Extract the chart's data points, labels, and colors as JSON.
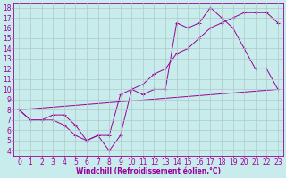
{
  "bg_color": "#c8ecec",
  "line_color": "#990099",
  "grid_color": "#b0c8c8",
  "xlabel": "Windchill (Refroidissement éolien,°C)",
  "xlabel_fontsize": 5.5,
  "tick_fontsize": 5.5,
  "xlim": [
    -0.5,
    23.5
  ],
  "ylim": [
    3.5,
    18.5
  ],
  "xticks": [
    0,
    1,
    2,
    3,
    4,
    5,
    6,
    7,
    8,
    9,
    10,
    11,
    12,
    13,
    14,
    15,
    16,
    17,
    18,
    19,
    20,
    21,
    22,
    23
  ],
  "yticks": [
    4,
    5,
    6,
    7,
    8,
    9,
    10,
    11,
    12,
    13,
    14,
    15,
    16,
    17,
    18
  ],
  "curve1_x": [
    0,
    1,
    2,
    3,
    4,
    5,
    6,
    7,
    8,
    9,
    10,
    11,
    12,
    13,
    14,
    15,
    16,
    17,
    18,
    19,
    20,
    21,
    22,
    23
  ],
  "curve1_y": [
    8.0,
    7.0,
    7.0,
    7.0,
    6.5,
    5.5,
    5.0,
    5.5,
    4.0,
    5.5,
    10.0,
    9.5,
    10.0,
    10.0,
    16.5,
    16.0,
    16.5,
    18.0,
    17.0,
    16.0,
    14.0,
    12.0,
    12.0,
    10.0
  ],
  "curve2_x": [
    0,
    1,
    2,
    3,
    4,
    5,
    6,
    7,
    8,
    9,
    10,
    11,
    12,
    13,
    14,
    15,
    16,
    17,
    18,
    19,
    20,
    21,
    22,
    23
  ],
  "curve2_y": [
    8.0,
    7.0,
    7.0,
    7.5,
    7.5,
    6.5,
    5.0,
    5.5,
    5.5,
    9.5,
    10.0,
    10.5,
    11.5,
    12.0,
    13.5,
    14.0,
    15.0,
    16.0,
    16.5,
    17.0,
    17.5,
    17.5,
    17.5,
    16.5
  ],
  "curve3_x": [
    0,
    23
  ],
  "curve3_y": [
    8.0,
    10.0
  ]
}
